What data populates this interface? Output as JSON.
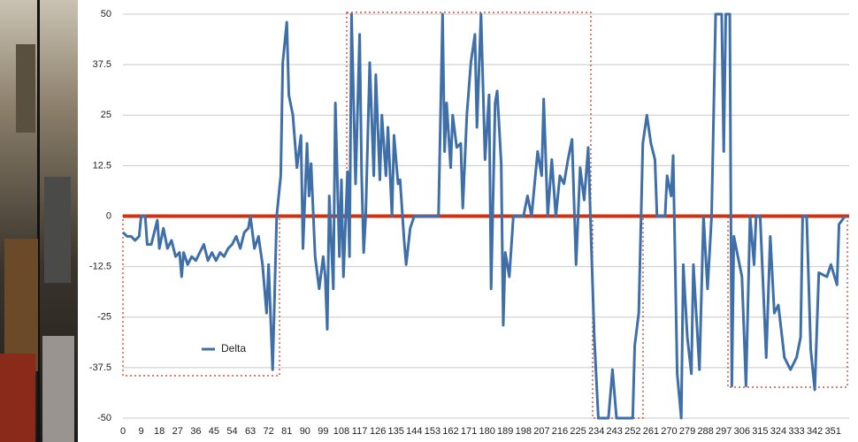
{
  "chart_data": {
    "type": "line",
    "x": [
      0,
      2,
      4,
      6,
      8,
      9,
      11,
      12,
      14,
      16,
      17,
      18,
      20,
      22,
      24,
      26,
      28,
      29,
      30,
      32,
      34,
      36,
      38,
      40,
      42,
      44,
      46,
      48,
      50,
      52,
      54,
      56,
      58,
      60,
      62,
      63,
      65,
      67,
      69,
      71,
      72,
      74,
      76,
      78,
      79,
      81,
      82,
      84,
      86,
      88,
      89,
      91,
      92,
      93,
      95,
      97,
      99,
      100,
      101,
      102,
      104,
      105,
      107,
      108,
      109,
      111,
      112,
      113,
      115,
      117,
      118,
      119,
      120,
      122,
      124,
      125,
      127,
      128,
      130,
      131,
      133,
      134,
      136,
      137,
      139,
      140,
      142,
      144,
      150,
      156,
      158,
      159,
      160,
      162,
      163,
      165,
      167,
      168,
      170,
      172,
      174,
      175,
      177,
      179,
      181,
      182,
      184,
      185,
      187,
      188,
      189,
      191,
      193,
      198,
      200,
      202,
      205,
      207,
      208,
      210,
      212,
      214,
      216,
      218,
      220,
      222,
      224,
      226,
      228,
      230,
      233,
      235,
      240,
      242,
      244,
      252,
      253,
      255,
      257,
      259,
      261,
      263,
      264,
      268,
      269,
      271,
      272,
      274,
      276,
      277,
      279,
      281,
      282,
      285,
      287,
      289,
      291,
      293,
      296,
      297,
      298,
      300,
      301,
      302,
      306,
      308,
      310,
      312,
      313,
      315,
      318,
      320,
      322,
      324,
      327,
      330,
      333,
      335,
      336,
      338,
      340,
      342,
      344,
      348,
      350,
      353,
      354,
      357
    ],
    "series": [
      {
        "name": "Delta",
        "color": "#3f6fa8",
        "values": [
          -4,
          -5,
          -5,
          -6,
          -5,
          0,
          0,
          -7,
          -7,
          -3,
          -1,
          -8,
          -3,
          -8,
          -6,
          -10,
          -9,
          -15,
          -9,
          -12,
          -10,
          -11,
          -9,
          -7,
          -11,
          -9,
          -11,
          -9,
          -10,
          -8,
          -7,
          -5,
          -8,
          -4,
          -3,
          0,
          -8,
          -5,
          -12,
          -24,
          -12,
          -38,
          0,
          10,
          38,
          48,
          30,
          25,
          12,
          20,
          -8,
          18,
          5,
          13,
          -10,
          -18,
          -10,
          -15,
          -28,
          5,
          -18,
          28,
          -10,
          9,
          -15,
          11,
          -10,
          50,
          8,
          45,
          10,
          -9,
          0,
          38,
          10,
          35,
          9,
          25,
          10,
          22,
          0,
          20,
          8,
          9,
          -6,
          -12,
          -3,
          0,
          0,
          0,
          50,
          16,
          28,
          12,
          25,
          17,
          18,
          2,
          25,
          38,
          45,
          22,
          50,
          14,
          30,
          -18,
          28,
          31,
          13,
          -27,
          -9,
          -15,
          0,
          0,
          5,
          0,
          16,
          10,
          29,
          0,
          14,
          0,
          10,
          8,
          14,
          19,
          -12,
          12,
          4,
          17,
          -30,
          -50,
          -50,
          -38,
          -50,
          -50,
          -32,
          -24,
          18,
          25,
          18,
          14,
          0,
          0,
          10,
          5,
          15,
          -39,
          -50,
          -12,
          -30,
          -39,
          -12,
          -38,
          0,
          -18,
          0,
          50,
          50,
          16,
          50,
          50,
          -42,
          -5,
          -15,
          -42,
          0,
          -12,
          0,
          0,
          -35,
          -5,
          -24,
          -22,
          -35,
          -38,
          -35,
          -30,
          0,
          0,
          -33,
          -43,
          -14,
          -15,
          -12,
          -17,
          -2,
          0
        ]
      }
    ],
    "xlim": [
      0,
      359
    ],
    "xticks": [
      0,
      9,
      18,
      27,
      36,
      45,
      54,
      63,
      72,
      81,
      90,
      99,
      108,
      117,
      126,
      135,
      144,
      153,
      162,
      171,
      180,
      189,
      198,
      207,
      216,
      225,
      234,
      243,
      252,
      261,
      270,
      279,
      288,
      297,
      306,
      315,
      324,
      333,
      342,
      351
    ],
    "ylim": [
      -50,
      50
    ],
    "yticks": [
      -50,
      -37.5,
      -25,
      -12.5,
      0,
      12.5,
      25,
      37.5,
      50
    ],
    "grid": true,
    "zero_line_color": "#cc3311",
    "legend": "lower left"
  }
}
